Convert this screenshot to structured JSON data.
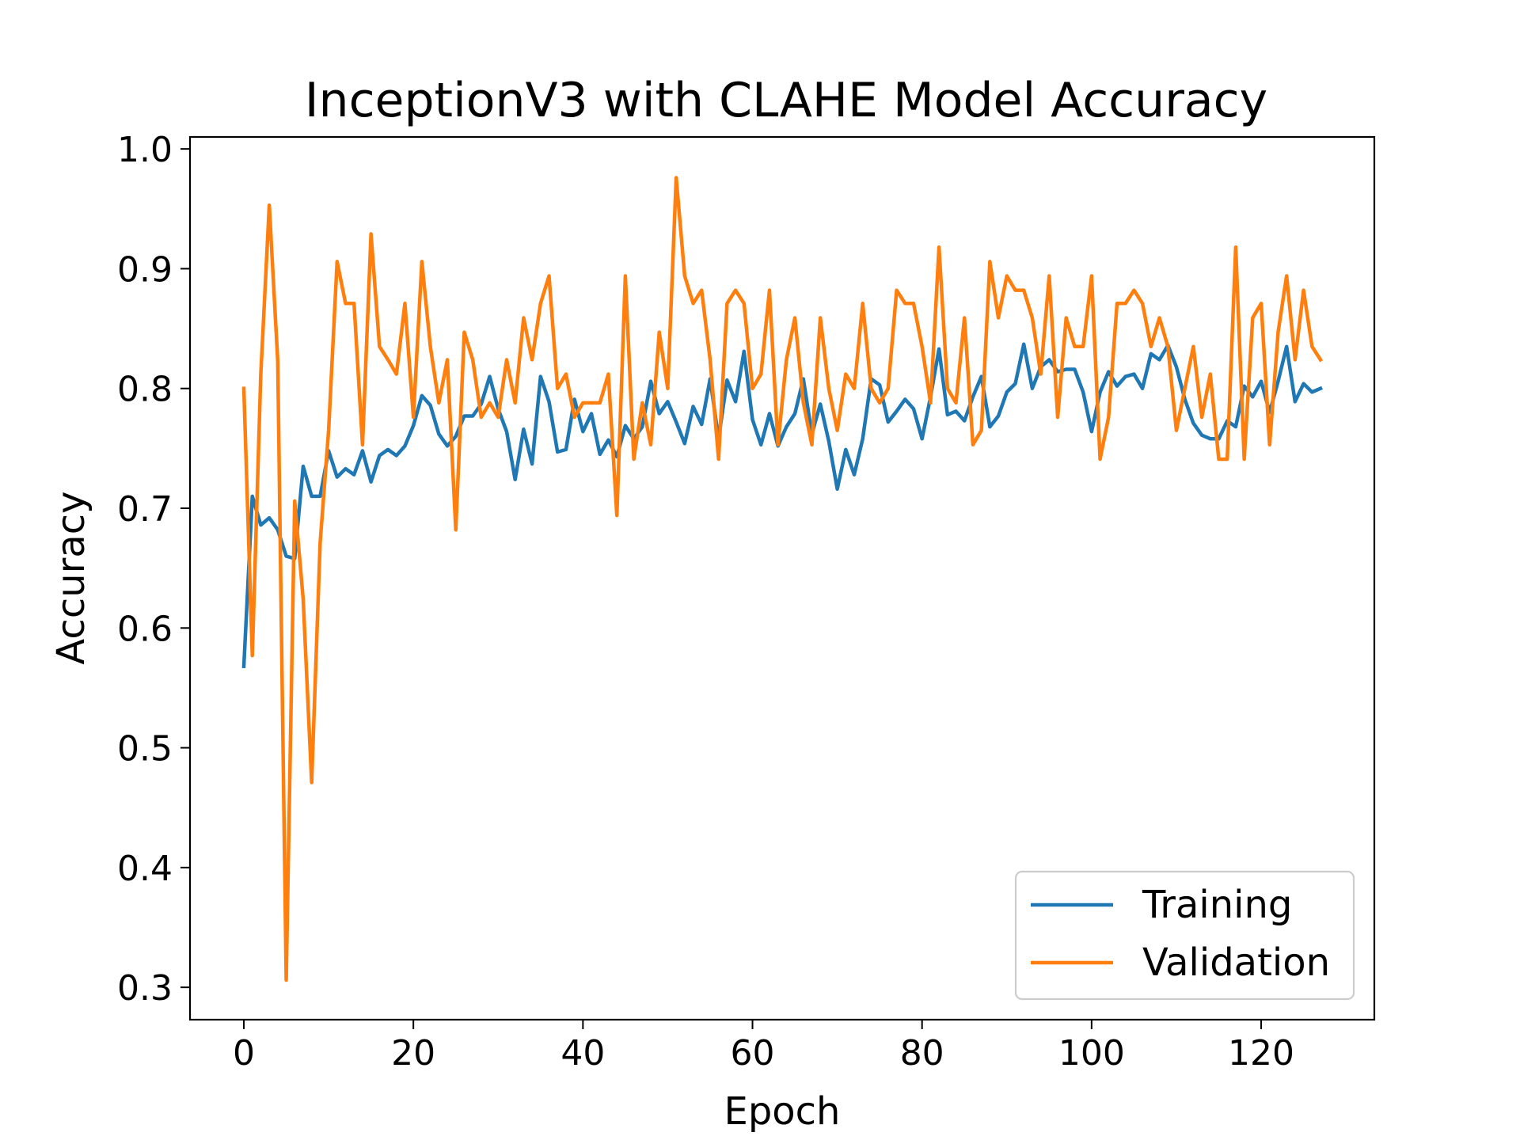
{
  "chart_data": {
    "type": "line",
    "title": "InceptionV3 with CLAHE Model Accuracy",
    "xlabel": "Epoch",
    "ylabel": "Accuracy",
    "xlim": [
      -6.35,
      133.35
    ],
    "ylim": [
      0.273,
      1.01
    ],
    "xticks": [
      0,
      20,
      40,
      60,
      80,
      100,
      120
    ],
    "yticks": [
      0.3,
      0.4,
      0.5,
      0.6,
      0.7,
      0.8,
      0.9,
      1.0
    ],
    "xtick_labels": [
      "0",
      "20",
      "40",
      "60",
      "80",
      "100",
      "120"
    ],
    "ytick_labels": [
      "0.3",
      "0.4",
      "0.5",
      "0.6",
      "0.7",
      "0.8",
      "0.9",
      "1.0"
    ],
    "grid": false,
    "legend_position": "lower right",
    "series": [
      {
        "name": "Training",
        "color": "#1f77b4",
        "values": [
          0.568,
          0.71,
          0.686,
          0.692,
          0.682,
          0.66,
          0.658,
          0.735,
          0.71,
          0.71,
          0.748,
          0.726,
          0.733,
          0.728,
          0.748,
          0.722,
          0.744,
          0.749,
          0.744,
          0.752,
          0.769,
          0.794,
          0.786,
          0.762,
          0.752,
          0.76,
          0.777,
          0.777,
          0.787,
          0.81,
          0.783,
          0.764,
          0.724,
          0.766,
          0.737,
          0.81,
          0.789,
          0.747,
          0.749,
          0.791,
          0.764,
          0.779,
          0.745,
          0.757,
          0.743,
          0.769,
          0.758,
          0.768,
          0.806,
          0.779,
          0.789,
          0.772,
          0.754,
          0.785,
          0.77,
          0.808,
          0.758,
          0.807,
          0.789,
          0.831,
          0.774,
          0.753,
          0.779,
          0.752,
          0.768,
          0.779,
          0.808,
          0.762,
          0.787,
          0.756,
          0.716,
          0.749,
          0.728,
          0.758,
          0.808,
          0.803,
          0.772,
          0.781,
          0.791,
          0.783,
          0.758,
          0.793,
          0.833,
          0.778,
          0.781,
          0.773,
          0.793,
          0.81,
          0.768,
          0.777,
          0.797,
          0.804,
          0.837,
          0.8,
          0.818,
          0.824,
          0.814,
          0.816,
          0.816,
          0.797,
          0.764,
          0.797,
          0.814,
          0.802,
          0.81,
          0.812,
          0.8,
          0.829,
          0.824,
          0.836,
          0.818,
          0.791,
          0.771,
          0.761,
          0.758,
          0.758,
          0.773,
          0.768,
          0.802,
          0.793,
          0.806,
          0.78,
          0.806,
          0.835,
          0.789,
          0.804,
          0.797,
          0.8
        ]
      },
      {
        "name": "Validation",
        "color": "#ff7f0e",
        "values": [
          0.8,
          0.577,
          0.812,
          0.953,
          0.823,
          0.306,
          0.706,
          0.624,
          0.471,
          0.671,
          0.765,
          0.906,
          0.871,
          0.871,
          0.753,
          0.929,
          0.835,
          0.824,
          0.812,
          0.871,
          0.776,
          0.906,
          0.835,
          0.788,
          0.824,
          0.682,
          0.847,
          0.824,
          0.776,
          0.788,
          0.776,
          0.824,
          0.788,
          0.859,
          0.824,
          0.871,
          0.894,
          0.8,
          0.812,
          0.776,
          0.788,
          0.788,
          0.788,
          0.812,
          0.694,
          0.894,
          0.741,
          0.788,
          0.753,
          0.847,
          0.8,
          0.976,
          0.894,
          0.871,
          0.882,
          0.824,
          0.741,
          0.871,
          0.882,
          0.871,
          0.8,
          0.812,
          0.882,
          0.753,
          0.824,
          0.859,
          0.788,
          0.753,
          0.859,
          0.8,
          0.765,
          0.812,
          0.8,
          0.871,
          0.8,
          0.788,
          0.8,
          0.882,
          0.871,
          0.871,
          0.835,
          0.788,
          0.918,
          0.8,
          0.788,
          0.859,
          0.753,
          0.765,
          0.906,
          0.859,
          0.894,
          0.882,
          0.882,
          0.859,
          0.812,
          0.894,
          0.776,
          0.859,
          0.835,
          0.835,
          0.894,
          0.741,
          0.776,
          0.871,
          0.871,
          0.882,
          0.871,
          0.835,
          0.859,
          0.835,
          0.765,
          0.8,
          0.835,
          0.776,
          0.812,
          0.741,
          0.741,
          0.918,
          0.741,
          0.859,
          0.871,
          0.753,
          0.847,
          0.894,
          0.824,
          0.882,
          0.835,
          0.824
        ]
      }
    ]
  }
}
